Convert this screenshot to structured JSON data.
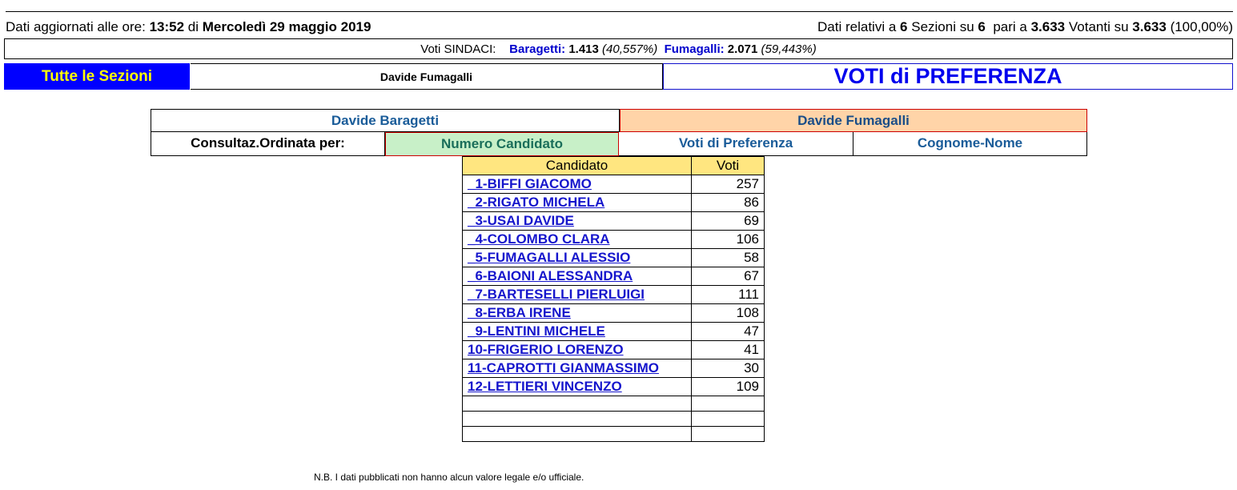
{
  "header": {
    "updated_prefix": "Dati aggiornati alle ore:",
    "time": "13:52",
    "di": "di",
    "date": "Mercoledì 29 maggio 2019",
    "rel_prefix": "Dati relativi a",
    "sezioni_count": "6",
    "sezioni_su": "Sezioni su",
    "sezioni_total": "6",
    "pari_a": "pari a",
    "votanti": "3.633",
    "votanti_su": "Votanti su",
    "votanti_total": "3.633",
    "percent": "(100,00%)"
  },
  "sindaci": {
    "label": "Voti SINDACI:",
    "c1_name": "Baragetti:",
    "c1_votes": "1.413",
    "c1_pct": "(40,557%)",
    "c2_name": "Fumagalli:",
    "c2_votes": "2.071",
    "c2_pct": "(59,443%)"
  },
  "nav": {
    "tutte": "Tutte le Sezioni",
    "selected_sindaco": "Davide Fumagalli",
    "title": "VOTI di PREFERENZA"
  },
  "selector": {
    "sindaco1": "Davide Baragetti",
    "sindaco2": "Davide Fumagalli",
    "order_label": "Consultaz.Ordinata per:",
    "opt_numero": "Numero Candidato",
    "opt_voti": "Voti di Preferenza",
    "opt_cognome": "Cognome-Nome"
  },
  "results": {
    "col_candidato": "Candidato",
    "col_voti": "Voti",
    "rows": [
      {
        "name": "_1-BIFFI GIACOMO",
        "votes": "257"
      },
      {
        "name": "_2-RIGATO MICHELA",
        "votes": "86"
      },
      {
        "name": "_3-USAI DAVIDE",
        "votes": "69"
      },
      {
        "name": "_4-COLOMBO CLARA",
        "votes": "106"
      },
      {
        "name": "_5-FUMAGALLI ALESSIO",
        "votes": "58"
      },
      {
        "name": "_6-BAIONI ALESSANDRA",
        "votes": "67"
      },
      {
        "name": "_7-BARTESELLI PIERLUIGI",
        "votes": "111"
      },
      {
        "name": "_8-ERBA IRENE",
        "votes": "108"
      },
      {
        "name": "_9-LENTINI MICHELE",
        "votes": "47"
      },
      {
        "name": "10-FRIGERIO LORENZO",
        "votes": "41"
      },
      {
        "name": "11-CAPROTTI GIANMASSIMO",
        "votes": "30"
      },
      {
        "name": "12-LETTIERI VINCENZO",
        "votes": "109"
      }
    ]
  },
  "note": "N.B. I dati pubblicati non hanno alcun valore legale e/o ufficiale."
}
